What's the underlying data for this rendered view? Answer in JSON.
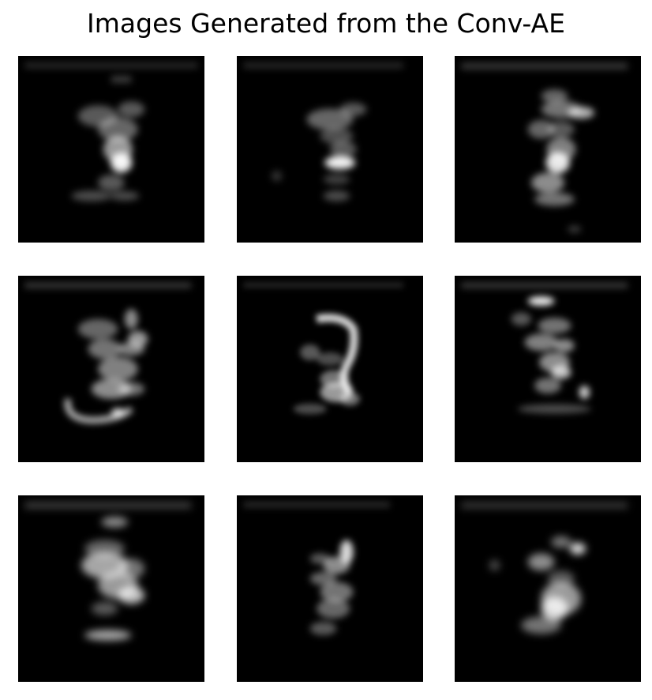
{
  "figure": {
    "title": "Images Generated from the Conv-AE"
  },
  "grid": {
    "rows": 3,
    "columns": 3,
    "cell_count": 9
  }
}
